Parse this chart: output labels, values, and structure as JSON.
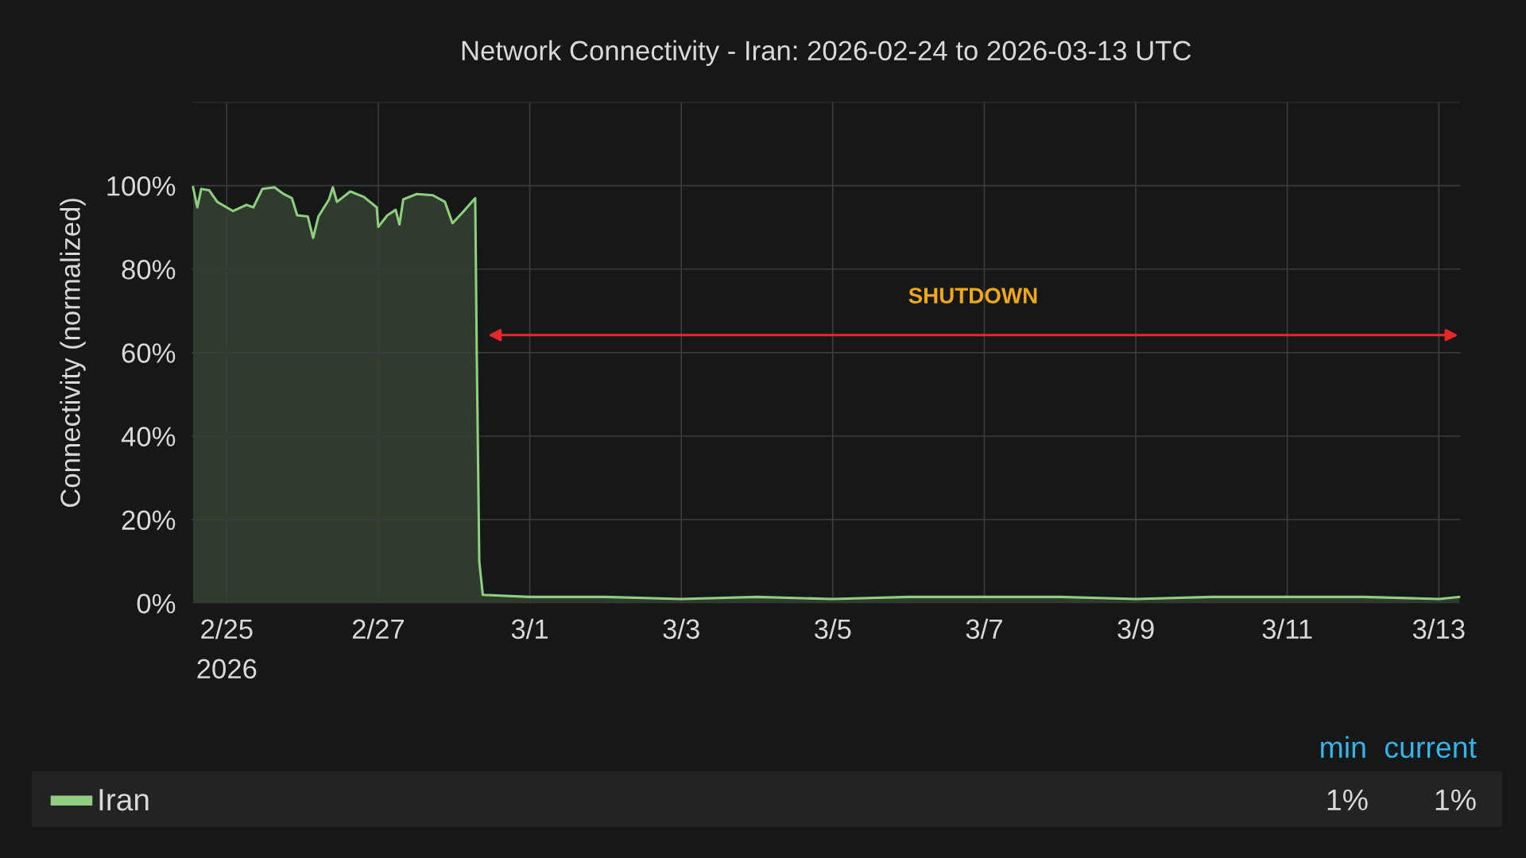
{
  "chart_data": {
    "type": "area",
    "title": "Network Connectivity - Iran: 2026-02-24 to 2026-03-13 UTC",
    "ylabel": "Connectivity (normalized)",
    "x": [
      "2026-02-24T13:20",
      "2026-02-24T14:40",
      "2026-02-24T15:55",
      "2026-02-24T18:25",
      "2026-02-24T21:00",
      "2026-02-25T02:00",
      "2026-02-25T06:15",
      "2026-02-25T08:25",
      "2026-02-25T11:17",
      "2026-02-25T15:07",
      "2026-02-25T18:00",
      "2026-02-25T20:38",
      "2026-02-25T22:19",
      "2026-02-26T01:40",
      "2026-02-26T03:22",
      "2026-02-26T05:02",
      "2026-02-26T08:24",
      "2026-02-26T09:36",
      "2026-02-26T10:55",
      "2026-02-26T15:07",
      "2026-02-26T19:26",
      "2026-02-26T23:31",
      "2026-02-27T00:00",
      "2026-02-27T02:53",
      "2026-02-27T05:31",
      "2026-02-27T06:43",
      "2026-02-27T07:55",
      "2026-02-27T12:14",
      "2026-02-27T17:17",
      "2026-02-27T21:07",
      "2026-02-27T23:31",
      "2026-02-28T02:38",
      "2026-02-28T06:43",
      "2026-02-28T07:12",
      "2026-02-28T08:00",
      "2026-02-28T09:07",
      "2026-03-01T00:00",
      "2026-03-02T00:00",
      "2026-03-03T00:00",
      "2026-03-04T00:00",
      "2026-03-05T00:00",
      "2026-03-06T00:00",
      "2026-03-07T00:00",
      "2026-03-08T00:00",
      "2026-03-09T00:00",
      "2026-03-10T00:00",
      "2026-03-11T00:00",
      "2026-03-12T00:00",
      "2026-03-13T00:00",
      "2026-03-13T06:30"
    ],
    "series": [
      {
        "name": "Iran",
        "color": "#8fce7f",
        "values": [
          99.6,
          94.8,
          99.2,
          98.9,
          96.1,
          93.9,
          95.4,
          94.8,
          99.2,
          99.6,
          98.0,
          97.0,
          92.9,
          92.6,
          87.5,
          92.6,
          96.7,
          99.6,
          96.1,
          98.6,
          97.3,
          94.8,
          90.1,
          92.9,
          94.2,
          90.7,
          96.7,
          98.0,
          97.7,
          96.1,
          91.0,
          93.5,
          97.0,
          60,
          10,
          2,
          1.5,
          1.5,
          1,
          1.5,
          1,
          1.5,
          1.5,
          1.5,
          1,
          1.5,
          1.5,
          1.5,
          1,
          1.5
        ]
      }
    ],
    "xlim": [
      "2026-02-24T12:50",
      "2026-03-13T06:50"
    ],
    "xticks": [
      {
        "value": "2026-02-25",
        "label": "2/25\n2026"
      },
      {
        "value": "2026-02-27",
        "label": "2/27"
      },
      {
        "value": "2026-03-01",
        "label": "3/1"
      },
      {
        "value": "2026-03-03",
        "label": "3/3"
      },
      {
        "value": "2026-03-05",
        "label": "3/5"
      },
      {
        "value": "2026-03-07",
        "label": "3/7"
      },
      {
        "value": "2026-03-09",
        "label": "3/9"
      },
      {
        "value": "2026-03-11",
        "label": "3/11"
      },
      {
        "value": "2026-03-13",
        "label": "3/13"
      }
    ],
    "ylim": [
      0,
      120
    ],
    "yticks": [
      {
        "value": 0,
        "label": "0%"
      },
      {
        "value": 20,
        "label": "20%"
      },
      {
        "value": 40,
        "label": "40%"
      },
      {
        "value": 60,
        "label": "60%"
      },
      {
        "value": 80,
        "label": "80%"
      },
      {
        "value": 100,
        "label": "100%"
      },
      {
        "value": 120,
        "label": null
      }
    ],
    "annotations": [
      "SHUTDOWN",
      "min",
      "current",
      "1%",
      "1%"
    ],
    "grid": true,
    "legend": "bottom"
  }
}
